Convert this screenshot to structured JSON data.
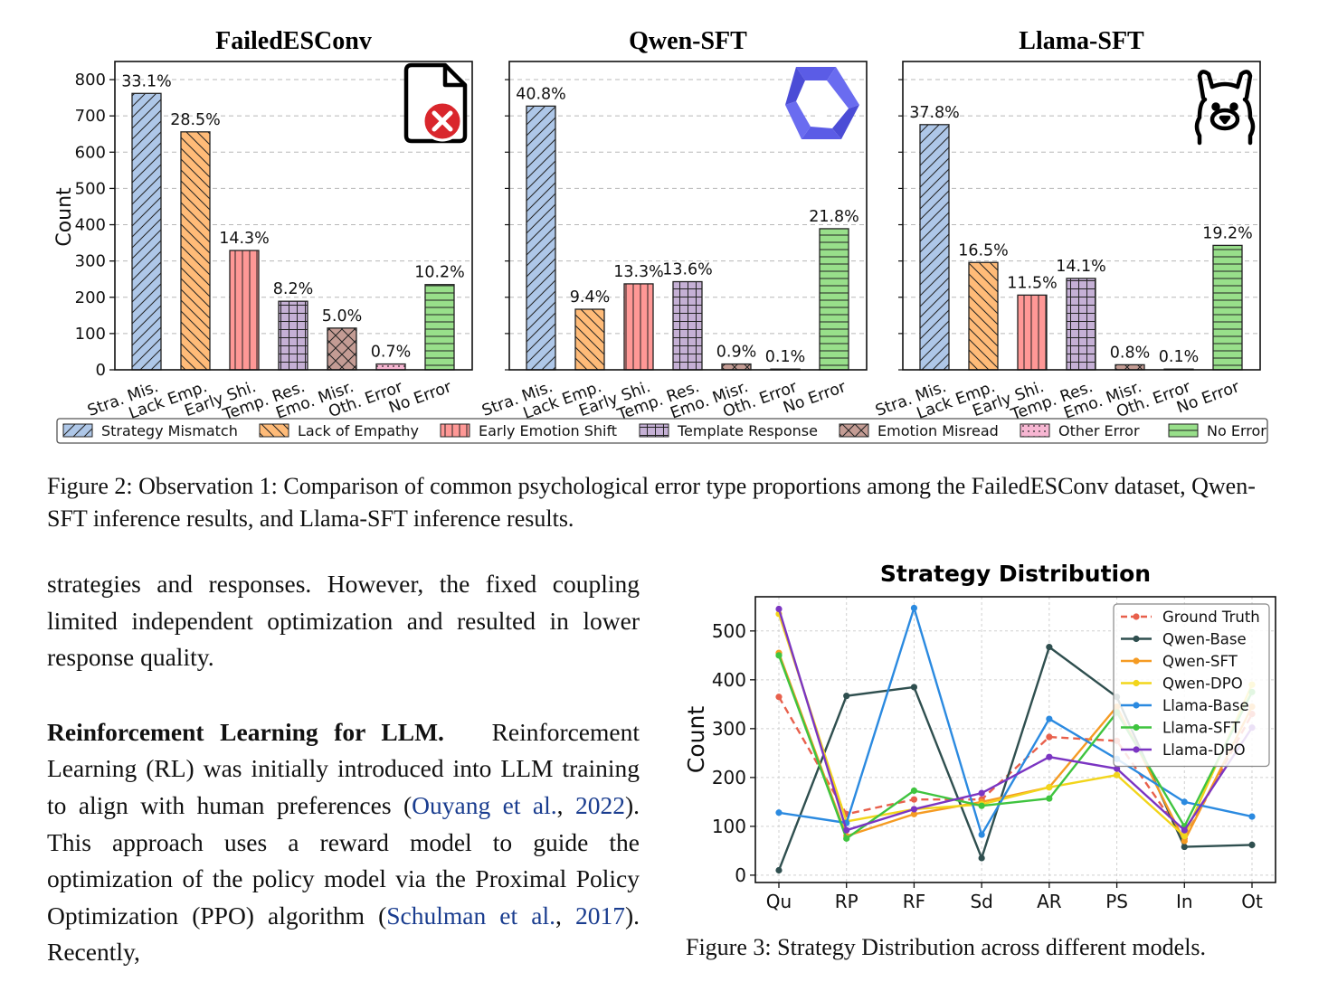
{
  "figure2": {
    "caption": "Figure 2: Observation 1: Comparison of common psychological error type proportions among the FailedESConv dataset, Qwen-SFT inference results, and Llama-SFT inference results.",
    "legend": [
      "Strategy Mismatch",
      "Lack of Empathy",
      "Early Emotion Shift",
      "Template Response",
      "Emotion Misread",
      "Other Error",
      "No Error"
    ],
    "icons": [
      "file-error-icon",
      "qwen-logo-icon",
      "llama-logo-icon"
    ]
  },
  "chart_data": [
    {
      "type": "bar",
      "title": "FailedESConv",
      "ylabel": "Count",
      "ylim": [
        0,
        850
      ],
      "yticks": [
        0,
        100,
        200,
        300,
        400,
        500,
        600,
        700,
        800
      ],
      "categories": [
        "Stra. Mis.",
        "Lack Emp.",
        "Early Shi.",
        "Temp. Res.",
        "Emo. Misr.",
        "Oth. Error",
        "No Error"
      ],
      "values": [
        762,
        656,
        329,
        189,
        115,
        16,
        235
      ],
      "labels": [
        "33.1%",
        "28.5%",
        "14.3%",
        "8.2%",
        "5.0%",
        "0.7%",
        "10.2%"
      ],
      "grid": "y",
      "colors": [
        "#aec7e8",
        "#ffbb78",
        "#ff9896",
        "#c5b0d5",
        "#c49c94",
        "#f7b6d2",
        "#98df8a"
      ]
    },
    {
      "type": "bar",
      "title": "Qwen-SFT",
      "ylim": [
        0,
        850
      ],
      "categories": [
        "Stra. Mis.",
        "Lack Emp.",
        "Early Shi.",
        "Temp. Res.",
        "Emo. Misr.",
        "Oth. Error",
        "No Error"
      ],
      "values": [
        727,
        167,
        237,
        243,
        16,
        2,
        389
      ],
      "labels": [
        "40.8%",
        "9.4%",
        "13.3%",
        "13.6%",
        "0.9%",
        "0.1%",
        "21.8%"
      ],
      "grid": "y"
    },
    {
      "type": "bar",
      "title": "Llama-SFT",
      "ylim": [
        0,
        850
      ],
      "categories": [
        "Stra. Mis.",
        "Lack Emp.",
        "Early Shi.",
        "Temp. Res.",
        "Emo. Misr.",
        "Oth. Error",
        "No Error"
      ],
      "values": [
        676,
        296,
        206,
        252,
        14,
        2,
        343
      ],
      "labels": [
        "37.8%",
        "16.5%",
        "11.5%",
        "14.1%",
        "0.8%",
        "0.1%",
        "19.2%"
      ],
      "grid": "y"
    },
    {
      "type": "line",
      "title": "Strategy Distribution",
      "ylabel": "Count",
      "ylim": [
        0,
        570
      ],
      "yticks": [
        0,
        100,
        200,
        300,
        400,
        500
      ],
      "categories": [
        "Qu",
        "RP",
        "RF",
        "Sd",
        "AR",
        "PS",
        "In",
        "Ot"
      ],
      "legend": "top-right",
      "grid": "both",
      "series": [
        {
          "name": "Ground Truth",
          "color": "#e8604c",
          "dashed": true,
          "values": [
            365,
            125,
            155,
            155,
            283,
            275,
            75,
            330
          ]
        },
        {
          "name": "Qwen-Base",
          "color": "#2f4f4f",
          "values": [
            10,
            367,
            385,
            35,
            467,
            365,
            58,
            62
          ]
        },
        {
          "name": "Qwen-SFT",
          "color": "#f59b23",
          "values": [
            455,
            80,
            125,
            150,
            180,
            345,
            70,
            345
          ]
        },
        {
          "name": "Qwen-DPO",
          "color": "#f2d51b",
          "values": [
            535,
            110,
            135,
            145,
            180,
            205,
            80,
            390
          ]
        },
        {
          "name": "Llama-Base",
          "color": "#2b8ae0",
          "values": [
            128,
            107,
            547,
            83,
            320,
            238,
            150,
            120
          ]
        },
        {
          "name": "Llama-SFT",
          "color": "#3fc43f",
          "values": [
            450,
            75,
            173,
            142,
            157,
            333,
            100,
            375
          ]
        },
        {
          "name": "Llama-DPO",
          "color": "#7b35c2",
          "values": [
            545,
            92,
            135,
            168,
            242,
            218,
            92,
            302
          ]
        }
      ]
    }
  ],
  "text": {
    "para1": "strategies and responses. However, the fixed coupling limited independent optimization and resulted in lower response quality.",
    "heading": "Reinforcement Learning for LLM.",
    "para2a": "Reinforcement Learning (RL) was initially introduced into LLM training to align with human preferences (",
    "cite1_author": "Ouyang et al.",
    "cite1_year": "2022",
    "para2b": "). This approach uses a reward model to guide the optimization of the policy model via the Proximal Policy Optimization (PPO) algorithm (",
    "cite2_author": "Schulman et al.",
    "cite2_year": "2017",
    "para2c": "). Recently,"
  },
  "figure3": {
    "caption": "Figure 3: Strategy Distribution across different models."
  }
}
